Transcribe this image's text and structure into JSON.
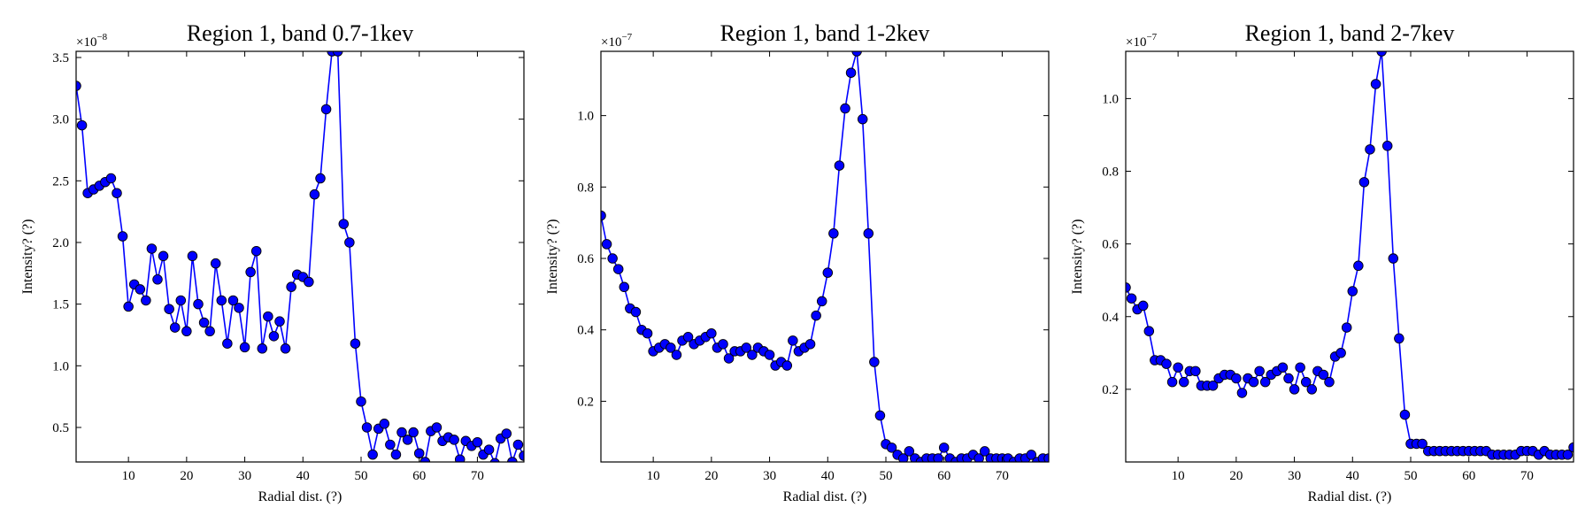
{
  "chart_data": [
    {
      "type": "line",
      "title": "Region 1, band 0.7-1kev",
      "xlabel": "Radial dist. (?)",
      "ylabel": "Intensity? (?)",
      "multiplier": "×10",
      "multiplier_exp": "−8",
      "scale": 1e-08,
      "xlim": [
        1,
        78
      ],
      "ylim": [
        0.22,
        3.55
      ],
      "xticks": [
        10,
        20,
        30,
        40,
        50,
        60,
        70
      ],
      "xtick_labels": [
        "10",
        "20",
        "30",
        "40",
        "50",
        "60",
        "70"
      ],
      "yticks": [
        0.5,
        1.0,
        1.5,
        2.0,
        2.5,
        3.0,
        3.5
      ],
      "ytick_labels": [
        "0.5",
        "1.0",
        "1.5",
        "2.0",
        "2.5",
        "3.0",
        "3.5"
      ],
      "grid": false,
      "series": [
        {
          "color": "#0000ff",
          "x": [
            1,
            2,
            3,
            4,
            5,
            6,
            7,
            8,
            9,
            10,
            11,
            12,
            13,
            14,
            15,
            16,
            17,
            18,
            19,
            20,
            21,
            22,
            23,
            24,
            25,
            26,
            27,
            28,
            29,
            30,
            31,
            32,
            33,
            34,
            35,
            36,
            37,
            38,
            39,
            40,
            41,
            42,
            43,
            44,
            45,
            46,
            47,
            48,
            49,
            50,
            51,
            52,
            53,
            54,
            55,
            56,
            57,
            58,
            59,
            60,
            61,
            62,
            63,
            64,
            65,
            66,
            67,
            68,
            69,
            70,
            71,
            72,
            73,
            74,
            75,
            76,
            77,
            78
          ],
          "y": [
            3.27,
            2.95,
            2.4,
            2.43,
            2.46,
            2.49,
            2.52,
            2.4,
            2.05,
            1.48,
            1.66,
            1.62,
            1.53,
            1.95,
            1.7,
            1.89,
            1.46,
            1.31,
            1.53,
            1.28,
            1.89,
            1.5,
            1.35,
            1.28,
            1.83,
            1.53,
            1.18,
            1.53,
            1.47,
            1.15,
            1.76,
            1.93,
            1.14,
            1.4,
            1.24,
            1.36,
            1.14,
            1.64,
            1.74,
            1.72,
            1.68,
            2.39,
            2.52,
            3.08,
            3.55,
            3.55,
            2.15,
            2.0,
            1.18,
            0.71,
            0.5,
            0.28,
            0.49,
            0.53,
            0.36,
            0.28,
            0.46,
            0.4,
            0.46,
            0.29,
            0.22,
            0.47,
            0.5,
            0.39,
            0.42,
            0.4,
            0.24,
            0.39,
            0.35,
            0.38,
            0.28,
            0.32,
            0.21,
            0.41,
            0.45,
            0.22,
            0.36,
            0.27
          ]
        }
      ]
    },
    {
      "type": "line",
      "title": "Region 1, band 1-2kev",
      "xlabel": "Radial dist. (?)",
      "ylabel": "Intensity? (?)",
      "multiplier": "×10",
      "multiplier_exp": "−7",
      "scale": 1e-07,
      "xlim": [
        1,
        78
      ],
      "ylim": [
        0.03,
        1.18
      ],
      "xticks": [
        10,
        20,
        30,
        40,
        50,
        60,
        70
      ],
      "xtick_labels": [
        "10",
        "20",
        "30",
        "40",
        "50",
        "60",
        "70"
      ],
      "yticks": [
        0.2,
        0.4,
        0.6,
        0.8,
        1.0
      ],
      "ytick_labels": [
        "0.2",
        "0.4",
        "0.6",
        "0.8",
        "1.0"
      ],
      "grid": false,
      "series": [
        {
          "color": "#0000ff",
          "x": [
            1,
            2,
            3,
            4,
            5,
            6,
            7,
            8,
            9,
            10,
            11,
            12,
            13,
            14,
            15,
            16,
            17,
            18,
            19,
            20,
            21,
            22,
            23,
            24,
            25,
            26,
            27,
            28,
            29,
            30,
            31,
            32,
            33,
            34,
            35,
            36,
            37,
            38,
            39,
            40,
            41,
            42,
            43,
            44,
            45,
            46,
            47,
            48,
            49,
            50,
            51,
            52,
            53,
            54,
            55,
            56,
            57,
            58,
            59,
            60,
            61,
            62,
            63,
            64,
            65,
            66,
            67,
            68,
            69,
            70,
            71,
            72,
            73,
            74,
            75,
            76,
            77,
            78
          ],
          "y": [
            0.72,
            0.64,
            0.6,
            0.57,
            0.52,
            0.46,
            0.45,
            0.4,
            0.39,
            0.34,
            0.35,
            0.36,
            0.35,
            0.33,
            0.37,
            0.38,
            0.36,
            0.37,
            0.38,
            0.39,
            0.35,
            0.36,
            0.32,
            0.34,
            0.34,
            0.35,
            0.33,
            0.35,
            0.34,
            0.33,
            0.3,
            0.31,
            0.3,
            0.37,
            0.34,
            0.35,
            0.36,
            0.44,
            0.48,
            0.56,
            0.67,
            0.86,
            1.02,
            1.12,
            1.18,
            0.99,
            0.67,
            0.31,
            0.16,
            0.08,
            0.07,
            0.05,
            0.04,
            0.06,
            0.04,
            0.03,
            0.04,
            0.04,
            0.04,
            0.07,
            0.04,
            0.03,
            0.04,
            0.04,
            0.05,
            0.04,
            0.06,
            0.04,
            0.04,
            0.04,
            0.04,
            0.03,
            0.04,
            0.04,
            0.05,
            0.03,
            0.04,
            0.04
          ]
        }
      ]
    },
    {
      "type": "line",
      "title": "Region 1, band 2-7kev",
      "xlabel": "Radial dist. (?)",
      "ylabel": "Intensity? (?)",
      "multiplier": "×10",
      "multiplier_exp": "−7",
      "scale": 1e-07,
      "xlim": [
        1,
        78
      ],
      "ylim": [
        0.0,
        1.13
      ],
      "xticks": [
        10,
        20,
        30,
        40,
        50,
        60,
        70
      ],
      "xtick_labels": [
        "10",
        "20",
        "30",
        "40",
        "50",
        "60",
        "70"
      ],
      "yticks": [
        0.2,
        0.4,
        0.6,
        0.8,
        1.0
      ],
      "ytick_labels": [
        "0.2",
        "0.4",
        "0.6",
        "0.8",
        "1.0"
      ],
      "grid": false,
      "series": [
        {
          "color": "#0000ff",
          "x": [
            1,
            2,
            3,
            4,
            5,
            6,
            7,
            8,
            9,
            10,
            11,
            12,
            13,
            14,
            15,
            16,
            17,
            18,
            19,
            20,
            21,
            22,
            23,
            24,
            25,
            26,
            27,
            28,
            29,
            30,
            31,
            32,
            33,
            34,
            35,
            36,
            37,
            38,
            39,
            40,
            41,
            42,
            43,
            44,
            45,
            46,
            47,
            48,
            49,
            50,
            51,
            52,
            53,
            54,
            55,
            56,
            57,
            58,
            59,
            60,
            61,
            62,
            63,
            64,
            65,
            66,
            67,
            68,
            69,
            70,
            71,
            72,
            73,
            74,
            75,
            76,
            77,
            78
          ],
          "y": [
            0.48,
            0.45,
            0.42,
            0.43,
            0.36,
            0.28,
            0.28,
            0.27,
            0.22,
            0.26,
            0.22,
            0.25,
            0.25,
            0.21,
            0.21,
            0.21,
            0.23,
            0.24,
            0.24,
            0.23,
            0.19,
            0.23,
            0.22,
            0.25,
            0.22,
            0.24,
            0.25,
            0.26,
            0.23,
            0.2,
            0.26,
            0.22,
            0.2,
            0.25,
            0.24,
            0.22,
            0.29,
            0.3,
            0.37,
            0.47,
            0.54,
            0.77,
            0.86,
            1.04,
            1.13,
            0.87,
            0.56,
            0.34,
            0.13,
            0.05,
            0.05,
            0.05,
            0.03,
            0.03,
            0.03,
            0.03,
            0.03,
            0.03,
            0.03,
            0.03,
            0.03,
            0.03,
            0.03,
            0.02,
            0.02,
            0.02,
            0.02,
            0.02,
            0.03,
            0.03,
            0.03,
            0.02,
            0.03,
            0.02,
            0.02,
            0.02,
            0.02,
            0.04
          ]
        }
      ]
    }
  ]
}
